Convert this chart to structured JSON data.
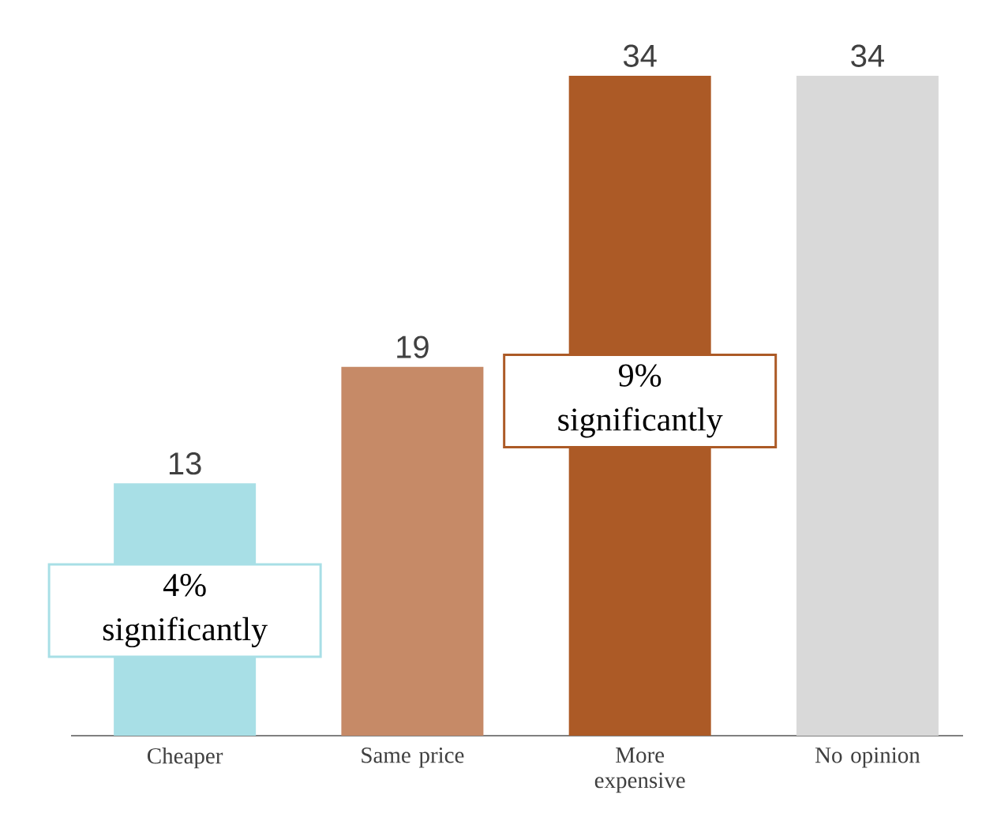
{
  "chart_data": {
    "type": "bar",
    "categories": [
      "Cheaper",
      "Same price",
      "More expensive",
      "No opinion"
    ],
    "values": [
      13,
      19,
      34,
      34
    ],
    "colors": [
      "#a8dfe6",
      "#c68a67",
      "#ac5a26",
      "#d9d9d9"
    ],
    "data_labels": true,
    "annotations": [
      "4% significantly",
      "9% significantly"
    ]
  }
}
